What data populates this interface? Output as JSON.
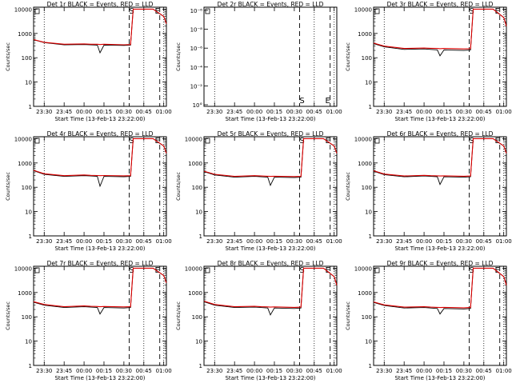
{
  "figure": {
    "xlabel": "Start Time (13-Feb-13 23:22:00)",
    "ylabel": "Counts/sec",
    "x_tick_labels": [
      "23:30",
      "23:45",
      "00:00",
      "00:15",
      "00:30",
      "00:45",
      "01:00"
    ],
    "y_tick_labels_decades": [
      "1",
      "10",
      "100",
      "1000",
      "10000"
    ],
    "y_tick_labels_det2": [
      "10°",
      "10⁻²",
      "10⁻⁴",
      "10⁻⁶",
      "10⁻⁸",
      "10⁻⁶"
    ],
    "series_colors": {
      "events": "#000000",
      "lld": "#dd0000"
    }
  },
  "chart_data": [
    {
      "type": "line",
      "title": "Det 1r BLACK = Events, RED = LLD",
      "markers": [
        "S",
        "E"
      ],
      "x": [
        "23:22",
        "23:30",
        "23:45",
        "00:00",
        "00:05",
        "00:10",
        "00:12",
        "00:15",
        "00:30",
        "00:35",
        "00:37",
        "00:45",
        "00:52",
        "01:00",
        "01:02"
      ],
      "series": [
        {
          "name": "Events",
          "values": [
            550,
            420,
            340,
            350,
            340,
            330,
            160,
            330,
            320,
            330,
            10000,
            10000,
            10000,
            5000,
            2500
          ]
        },
        {
          "name": "LLD",
          "values": [
            560,
            430,
            360,
            370,
            360,
            360,
            350,
            360,
            340,
            350,
            10000,
            10000,
            10000,
            5000,
            2500
          ]
        }
      ],
      "ylim": [
        1,
        12000
      ],
      "log_y": true
    },
    {
      "type": "line",
      "title": "Det 2r BLACK = Events, RED = LLD",
      "markers": [
        "S",
        "E"
      ],
      "series": [],
      "empty": true
    },
    {
      "type": "line",
      "title": "Det 3r BLACK = Events, RED = LLD",
      "markers": [
        "S",
        "E"
      ],
      "x": [
        "23:22",
        "23:30",
        "23:45",
        "00:00",
        "00:05",
        "00:10",
        "00:12",
        "00:15",
        "00:30",
        "00:35",
        "00:37",
        "00:45",
        "00:52",
        "01:00",
        "01:02"
      ],
      "series": [
        {
          "name": "Events",
          "values": [
            380,
            280,
            220,
            230,
            220,
            210,
            120,
            210,
            200,
            210,
            10000,
            10000,
            10000,
            4500,
            2000
          ]
        },
        {
          "name": "LLD",
          "values": [
            400,
            300,
            240,
            250,
            245,
            240,
            235,
            240,
            230,
            235,
            10000,
            10000,
            10000,
            4500,
            2000
          ]
        }
      ],
      "ylim": [
        1,
        12000
      ],
      "log_y": true
    },
    {
      "type": "line",
      "title": "Det 4r BLACK = Events, RED = LLD",
      "markers": [
        "S",
        "E"
      ],
      "x": [
        "23:22",
        "23:30",
        "23:45",
        "00:00",
        "00:05",
        "00:10",
        "00:12",
        "00:15",
        "00:30",
        "00:35",
        "00:37",
        "00:45",
        "00:52",
        "01:00",
        "01:02"
      ],
      "series": [
        {
          "name": "Events",
          "values": [
            480,
            340,
            280,
            300,
            290,
            280,
            110,
            280,
            270,
            280,
            10000,
            10000,
            10000,
            5000,
            2500
          ]
        },
        {
          "name": "LLD",
          "values": [
            500,
            360,
            300,
            320,
            310,
            305,
            300,
            305,
            295,
            300,
            10000,
            10000,
            10000,
            5000,
            2500
          ]
        }
      ],
      "ylim": [
        1,
        12000
      ],
      "log_y": true
    },
    {
      "type": "line",
      "title": "Det 5r BLACK = Events, RED = LLD",
      "markers": [
        "S",
        "E"
      ],
      "x": [
        "23:22",
        "23:30",
        "23:45",
        "00:00",
        "00:05",
        "00:10",
        "00:12",
        "00:15",
        "00:30",
        "00:35",
        "00:37",
        "00:45",
        "00:52",
        "01:00",
        "01:02"
      ],
      "series": [
        {
          "name": "Events",
          "values": [
            440,
            320,
            260,
            280,
            270,
            260,
            120,
            260,
            250,
            260,
            10000,
            10000,
            10000,
            5000,
            2500
          ]
        },
        {
          "name": "LLD",
          "values": [
            460,
            340,
            280,
            300,
            290,
            285,
            280,
            285,
            275,
            280,
            10000,
            10000,
            10000,
            5000,
            2500
          ]
        }
      ],
      "ylim": [
        1,
        12000
      ],
      "log_y": true
    },
    {
      "type": "line",
      "title": "Det 6r BLACK = Events, RED = LLD",
      "markers": [
        "S",
        "E"
      ],
      "x": [
        "23:22",
        "23:30",
        "23:45",
        "00:00",
        "00:05",
        "00:10",
        "00:12",
        "00:15",
        "00:30",
        "00:35",
        "00:37",
        "00:45",
        "00:52",
        "01:00",
        "01:02"
      ],
      "series": [
        {
          "name": "Events",
          "values": [
            460,
            330,
            270,
            290,
            280,
            270,
            130,
            270,
            260,
            270,
            10000,
            10000,
            10000,
            5000,
            2500
          ]
        },
        {
          "name": "LLD",
          "values": [
            480,
            350,
            290,
            310,
            300,
            295,
            290,
            295,
            285,
            290,
            10000,
            10000,
            10000,
            5000,
            2500
          ]
        }
      ],
      "ylim": [
        1,
        12000
      ],
      "log_y": true
    },
    {
      "type": "line",
      "title": "Det 7r BLACK = Events, RED = LLD",
      "markers": [
        "S",
        "E"
      ],
      "x": [
        "23:22",
        "23:30",
        "23:45",
        "00:00",
        "00:05",
        "00:10",
        "00:12",
        "00:15",
        "00:30",
        "00:35",
        "00:37",
        "00:45",
        "00:52",
        "01:00",
        "01:02"
      ],
      "series": [
        {
          "name": "Events",
          "values": [
            400,
            300,
            240,
            260,
            250,
            240,
            130,
            240,
            230,
            240,
            10000,
            10000,
            10000,
            5000,
            2500
          ]
        },
        {
          "name": "LLD",
          "values": [
            420,
            320,
            260,
            280,
            270,
            265,
            260,
            265,
            255,
            260,
            10000,
            10000,
            10000,
            5000,
            2500
          ]
        }
      ],
      "ylim": [
        1,
        12000
      ],
      "log_y": true
    },
    {
      "type": "line",
      "title": "Det 8r BLACK = Events, RED = LLD",
      "markers": [
        "S",
        "E"
      ],
      "x": [
        "23:22",
        "23:30",
        "23:45",
        "00:00",
        "00:05",
        "00:10",
        "00:12",
        "00:15",
        "00:30",
        "00:35",
        "00:37",
        "00:45",
        "00:52",
        "01:00",
        "01:02"
      ],
      "series": [
        {
          "name": "Events",
          "values": [
            420,
            300,
            240,
            250,
            240,
            230,
            120,
            230,
            220,
            230,
            10000,
            10000,
            10000,
            4500,
            2000
          ]
        },
        {
          "name": "LLD",
          "values": [
            440,
            320,
            260,
            270,
            260,
            255,
            250,
            255,
            245,
            250,
            10000,
            10000,
            10000,
            4500,
            2000
          ]
        }
      ],
      "ylim": [
        1,
        12000
      ],
      "log_y": true
    },
    {
      "type": "line",
      "title": "Det 9r BLACK = Events, RED = LLD",
      "markers": [
        "S",
        "E"
      ],
      "x": [
        "23:22",
        "23:30",
        "23:45",
        "00:00",
        "00:05",
        "00:10",
        "00:12",
        "00:15",
        "00:30",
        "00:35",
        "00:37",
        "00:45",
        "00:52",
        "01:00",
        "01:02"
      ],
      "series": [
        {
          "name": "Events",
          "values": [
            390,
            290,
            230,
            240,
            230,
            220,
            130,
            220,
            210,
            220,
            10000,
            10000,
            10000,
            4500,
            2000
          ]
        },
        {
          "name": "LLD",
          "values": [
            410,
            310,
            250,
            260,
            250,
            245,
            240,
            245,
            235,
            240,
            10000,
            10000,
            10000,
            4500,
            2000
          ]
        }
      ],
      "ylim": [
        1,
        12000
      ],
      "log_y": true
    }
  ]
}
